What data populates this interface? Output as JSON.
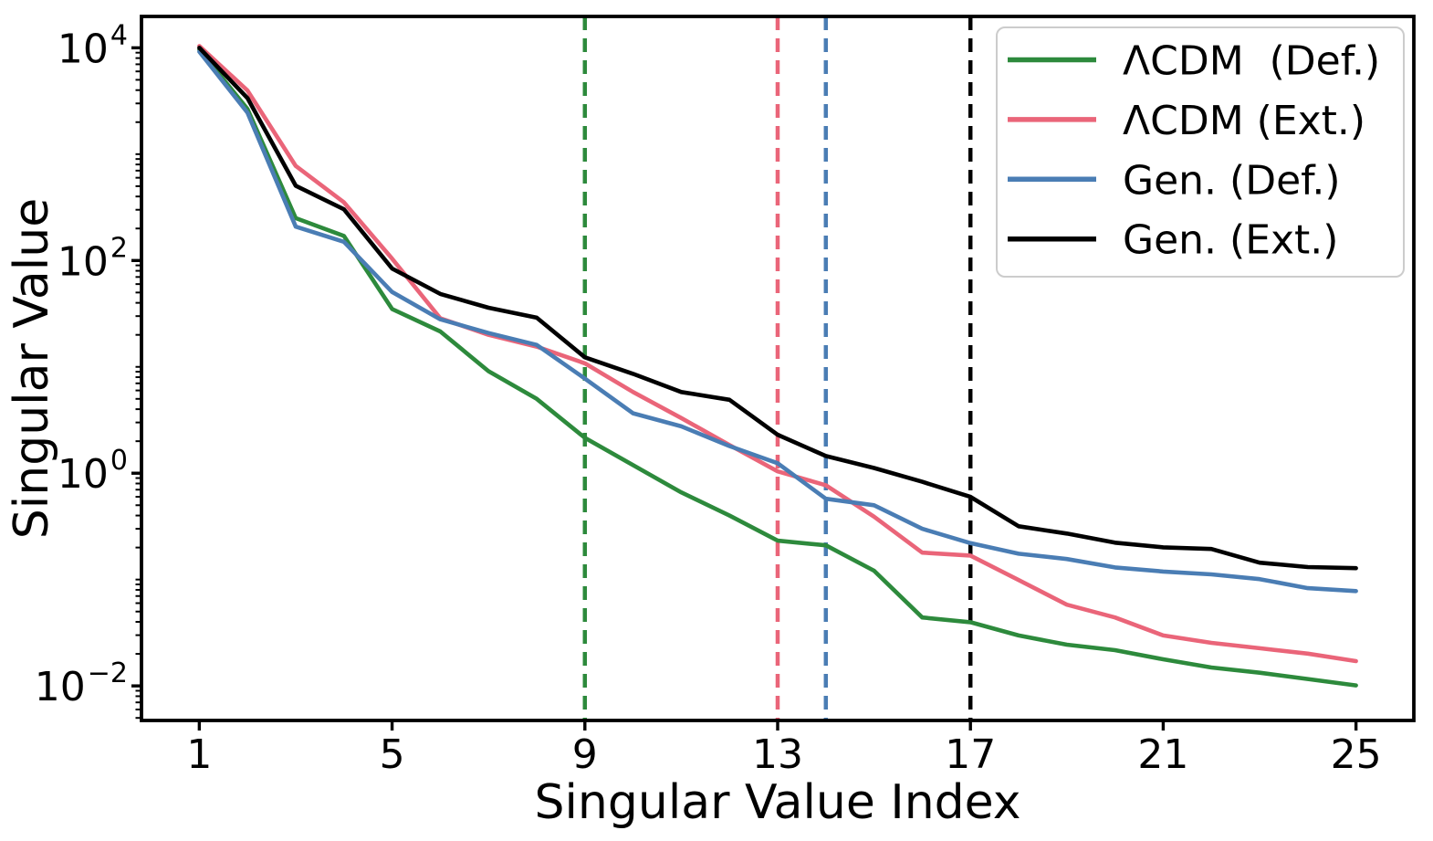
{
  "figure": {
    "background_color": "#ffffff",
    "text_color": "#000000"
  },
  "chart_data": {
    "type": "line",
    "title": "",
    "xlabel": "Singular Value Index",
    "ylabel": "Singular Value",
    "yscale": "log",
    "grid": false,
    "legend_position": "upper right",
    "xlim": [
      -0.2,
      26.2
    ],
    "ylim_log10": [
      -2.325,
      4.295
    ],
    "x": [
      1,
      2,
      3,
      4,
      5,
      6,
      7,
      8,
      9,
      10,
      11,
      12,
      13,
      14,
      15,
      16,
      17,
      18,
      19,
      20,
      21,
      22,
      23,
      24,
      25
    ],
    "xticks": [
      1,
      5,
      9,
      13,
      17,
      21,
      25
    ],
    "yticks": [
      {
        "log10": 4,
        "mantissa": "10",
        "exponent": "4"
      },
      {
        "log10": 2,
        "mantissa": "10",
        "exponent": "2"
      },
      {
        "log10": 0,
        "mantissa": "10",
        "exponent": "0"
      },
      {
        "log10": -2,
        "mantissa": "10",
        "exponent": "−2"
      }
    ],
    "series": [
      {
        "name": "ΛCDM  (Def.)",
        "color": "#2d8a3c",
        "values": [
          9600,
          2650,
          250,
          170,
          35,
          21.5,
          9.1,
          5.0,
          2.15,
          1.19,
          0.66,
          0.4,
          0.232,
          0.21,
          0.121,
          0.044,
          0.0397,
          0.0298,
          0.0244,
          0.0217,
          0.0178,
          0.0149,
          0.0133,
          0.0116,
          0.0101
        ]
      },
      {
        "name": "ΛCDM (Ext.)",
        "color": "#ea6579",
        "values": [
          10400,
          3960,
          775,
          352,
          104,
          28.6,
          20.0,
          15.5,
          10.8,
          5.8,
          3.3,
          1.84,
          1.04,
          0.77,
          0.39,
          0.179,
          0.168,
          0.099,
          0.058,
          0.044,
          0.0298,
          0.0254,
          0.0226,
          0.0201,
          0.0171
        ]
      },
      {
        "name": "Gen. (Def.)",
        "color": "#4a7db4",
        "values": [
          9200,
          2450,
          208,
          150,
          50.5,
          28.0,
          20.8,
          16.1,
          7.75,
          3.66,
          2.76,
          1.8,
          1.24,
          0.575,
          0.5,
          0.3,
          0.22,
          0.175,
          0.156,
          0.13,
          0.119,
          0.112,
          0.101,
          0.083,
          0.078
        ]
      },
      {
        "name": "Gen. (Ext.)",
        "color": "#000000",
        "values": [
          10000,
          3360,
          505,
          303,
          84,
          48.5,
          36,
          29,
          12.3,
          8.6,
          5.8,
          4.9,
          2.3,
          1.45,
          1.12,
          0.83,
          0.6,
          0.317,
          0.271,
          0.222,
          0.201,
          0.194,
          0.144,
          0.131,
          0.128
        ]
      }
    ],
    "vlines": [
      {
        "x": 9,
        "color": "#2d8a3c",
        "style": "dashed"
      },
      {
        "x": 13,
        "color": "#ea6579",
        "style": "dashed"
      },
      {
        "x": 14,
        "color": "#4a7db4",
        "style": "dashed"
      },
      {
        "x": 17,
        "color": "#000000",
        "style": "dashed"
      }
    ],
    "legend": {
      "border_color": "#cccccc",
      "background_color": "#ffffff"
    }
  }
}
